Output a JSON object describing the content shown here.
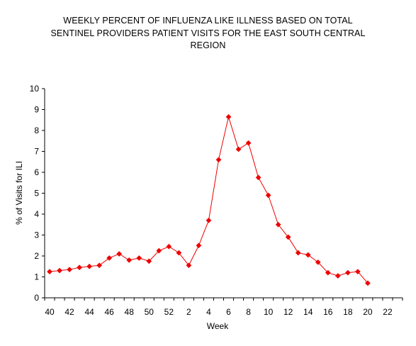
{
  "chart_data": {
    "type": "line",
    "title_lines": [
      "WEEKLY PERCENT OF INFLUENZA LIKE ILLNESS BASED ON TOTAL",
      "SENTINEL PROVIDERS PATIENT VISITS FOR THE EAST SOUTH CENTRAL",
      "REGION"
    ],
    "xlabel": "Week",
    "ylabel": "% of Visits for ILI",
    "ylim": [
      0,
      10
    ],
    "yticks": [
      0,
      1,
      2,
      3,
      4,
      5,
      6,
      7,
      8,
      9,
      10
    ],
    "x_categories": [
      "40",
      "41",
      "42",
      "43",
      "44",
      "45",
      "46",
      "47",
      "48",
      "49",
      "50",
      "51",
      "52",
      "1",
      "2",
      "3",
      "4",
      "5",
      "6",
      "7",
      "8",
      "9",
      "10",
      "11",
      "12",
      "13",
      "14",
      "15",
      "16",
      "17",
      "18",
      "19",
      "20",
      "21",
      "22",
      "23"
    ],
    "x_tick_labels": [
      "40",
      "42",
      "44",
      "46",
      "48",
      "50",
      "52",
      "2",
      "4",
      "6",
      "8",
      "10",
      "12",
      "14",
      "16",
      "18",
      "20",
      "22"
    ],
    "series": [
      {
        "color": "#ee0000",
        "values": [
          1.25,
          1.3,
          1.35,
          1.45,
          1.5,
          1.55,
          1.9,
          2.1,
          1.8,
          1.9,
          1.75,
          2.25,
          2.45,
          2.15,
          1.55,
          2.5,
          3.7,
          6.6,
          8.65,
          7.1,
          7.4,
          5.75,
          4.9,
          3.5,
          2.9,
          2.15,
          2.05,
          1.7,
          1.2,
          1.05,
          1.2,
          1.25,
          0.7
        ]
      }
    ]
  }
}
